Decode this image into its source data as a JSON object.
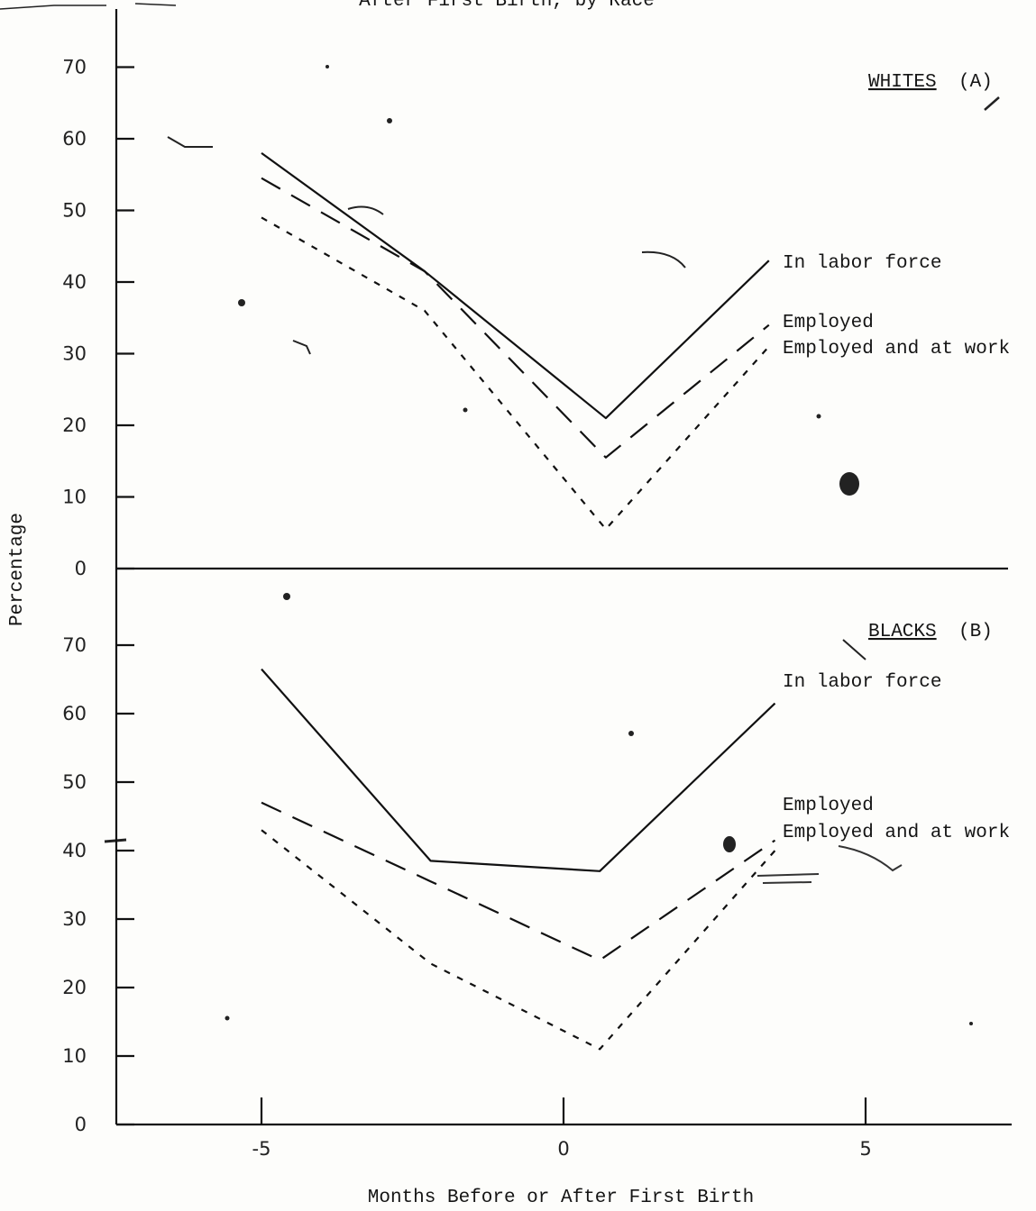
{
  "chart_data": [
    {
      "panel": "WHITES (A)",
      "panel_label": "WHITES",
      "panel_suffix": "(A)",
      "type": "line",
      "title_fragment": "After First Birth, by Race",
      "ylabel": "Percentage",
      "xlabel": "Months Before or After First Birth",
      "ylim": [
        0,
        75
      ],
      "yticks": [
        0,
        10,
        20,
        30,
        40,
        50,
        60,
        70
      ],
      "grid": false,
      "series": [
        {
          "name": "In labor force",
          "style": "solid",
          "x": [
            -5,
            -2.3,
            0.7,
            3.4
          ],
          "values": [
            58,
            41.5,
            21,
            43
          ]
        },
        {
          "name": "Employed",
          "style": "long-dash",
          "x": [
            -5,
            -2.3,
            0.7,
            3.4
          ],
          "values": [
            54.5,
            41.5,
            15.5,
            34
          ]
        },
        {
          "name": "Employed and at work",
          "style": "short-dash",
          "x": [
            -5,
            -2.3,
            0.7,
            3.4
          ],
          "values": [
            49,
            36,
            5.5,
            31
          ]
        }
      ]
    },
    {
      "panel": "BLACKS (B)",
      "panel_label": "BLACKS",
      "panel_suffix": "(B)",
      "type": "line",
      "ylabel": "Percentage",
      "xlabel": "Months Before or After First Birth",
      "ylim": [
        0,
        75
      ],
      "xlim": [
        -7.5,
        7.4
      ],
      "yticks": [
        0,
        10,
        20,
        30,
        40,
        50,
        60,
        70
      ],
      "xticks": [
        -5,
        0,
        5
      ],
      "xtick_labels": [
        "-5",
        "0",
        "5"
      ],
      "grid": false,
      "series": [
        {
          "name": "In labor force",
          "style": "solid",
          "x": [
            -5,
            -2.2,
            0.6,
            3.5
          ],
          "values": [
            66.5,
            38.5,
            37,
            61.5
          ]
        },
        {
          "name": "Employed",
          "style": "long-dash",
          "x": [
            -5,
            -2.2,
            0.6,
            3.5
          ],
          "values": [
            47,
            35.5,
            24,
            41.5
          ]
        },
        {
          "name": "Employed and at work",
          "style": "short-dash",
          "x": [
            -5,
            -2.2,
            0.6,
            3.5
          ],
          "values": [
            43,
            23.5,
            11,
            40
          ]
        }
      ]
    }
  ]
}
